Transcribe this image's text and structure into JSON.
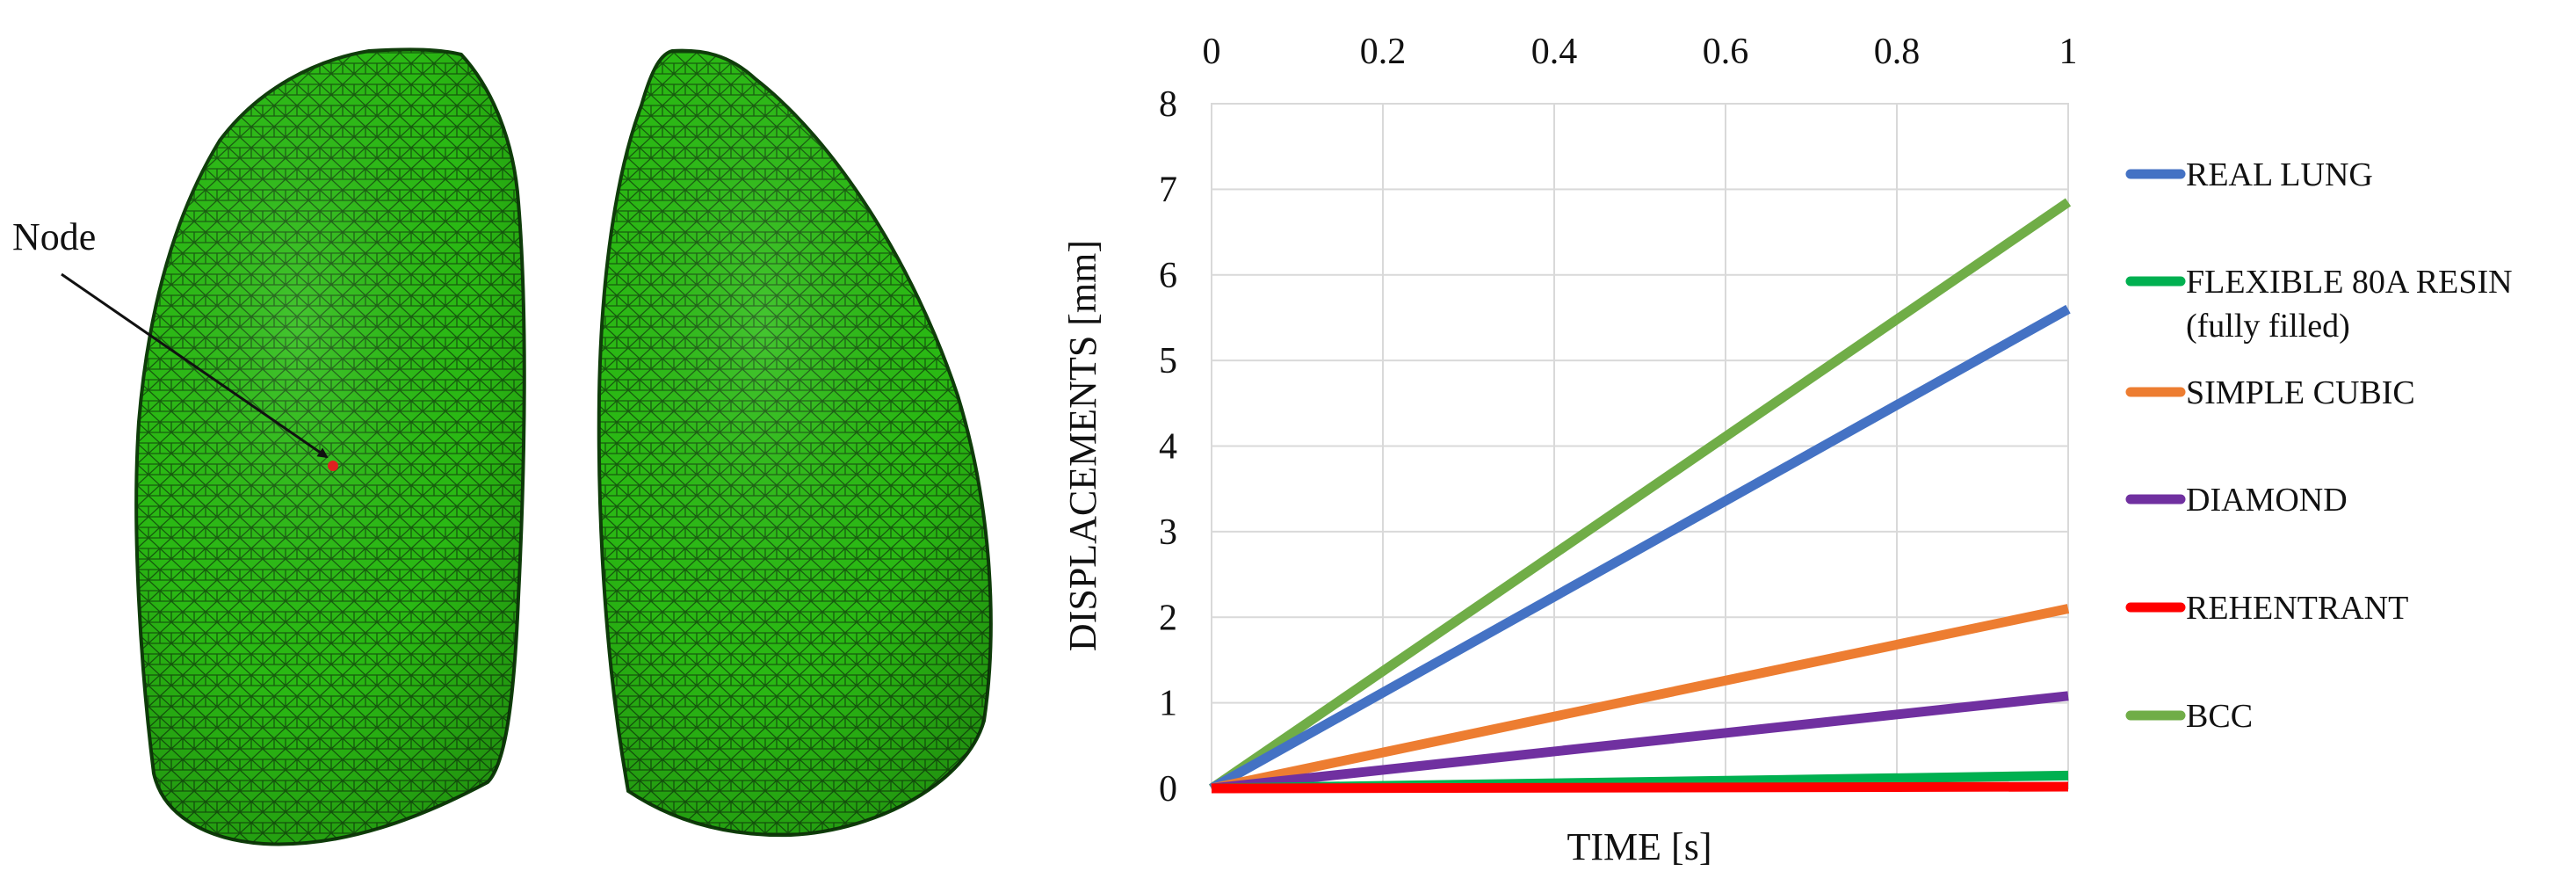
{
  "figure": {
    "node_label": "Node",
    "mesh_color": "#2bbd14",
    "mesh_line_color": "#0f3d0a",
    "node_marker_color": "#e02020"
  },
  "chart_data": {
    "type": "line",
    "title": "",
    "xlabel": "TIME [s]",
    "ylabel": "DISPLACEMENTS [mm]",
    "xlim": [
      0,
      1
    ],
    "ylim": [
      0,
      8
    ],
    "x_ticks": [
      "0",
      "0.2",
      "0.4",
      "0.6",
      "0.8",
      "1"
    ],
    "x_tick_values": [
      0,
      0.2,
      0.4,
      0.6,
      0.8,
      1
    ],
    "y_ticks": [
      "0",
      "1",
      "2",
      "3",
      "4",
      "5",
      "6",
      "7",
      "8"
    ],
    "y_tick_values": [
      0,
      1,
      2,
      3,
      4,
      5,
      6,
      7,
      8
    ],
    "grid": true,
    "legend_position": "right",
    "x": [
      0,
      1
    ],
    "series": [
      {
        "name": "REAL LUNG",
        "color": "#4472c4",
        "values": [
          0,
          5.6
        ]
      },
      {
        "name": "FLEXIBLE 80A RESIN",
        "name_line2": "(fully filled)",
        "color": "#00b050",
        "values": [
          0,
          0.15
        ]
      },
      {
        "name": "SIMPLE CUBIC",
        "color": "#ed7d31",
        "values": [
          0,
          2.1
        ]
      },
      {
        "name": "DIAMOND",
        "color": "#7030a0",
        "values": [
          0,
          1.08
        ]
      },
      {
        "name": "REHENTRANT",
        "color": "#ff0000",
        "values": [
          0,
          0.02
        ]
      },
      {
        "name": "BCC",
        "color": "#70ad47",
        "values": [
          0,
          6.85
        ]
      }
    ]
  }
}
